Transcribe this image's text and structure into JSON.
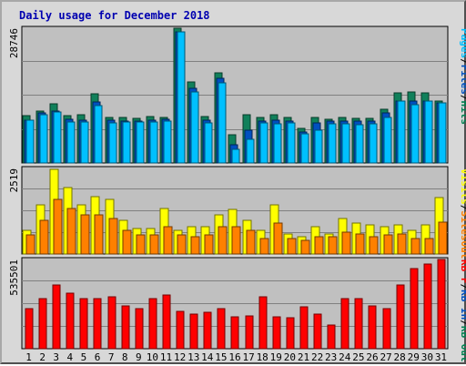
{
  "title": "Daily usage for December 2018",
  "colors": {
    "pages": "#00c0ff",
    "files": "#0050c0",
    "hits": "#008050",
    "visits": "#ffff00",
    "sites": "#ff8000",
    "kbin": "#008050",
    "kbout": "#0050c0",
    "kbf": "#ff0000",
    "weekend": "#008040",
    "weekday": "#0000b0",
    "panel": "#c0c0c0"
  },
  "chart_data": {
    "type": "bar",
    "categories": [
      "1",
      "2",
      "3",
      "4",
      "5",
      "6",
      "7",
      "8",
      "9",
      "10",
      "11",
      "12",
      "13",
      "14",
      "15",
      "16",
      "17",
      "18",
      "19",
      "20",
      "21",
      "22",
      "23",
      "24",
      "25",
      "26",
      "27",
      "28",
      "29",
      "30",
      "31"
    ],
    "weekend_days": [
      "1",
      "2",
      "8",
      "9",
      "15",
      "16",
      "22",
      "23",
      "29",
      "30"
    ],
    "panels": [
      {
        "y_max_label": "28746",
        "legend": [
          {
            "text": "Pages",
            "color": "#00c0ff"
          },
          {
            "text": "/",
            "color": "#000000"
          },
          {
            "text": "Files",
            "color": "#0050c0"
          },
          {
            "text": "/",
            "color": "#000000"
          },
          {
            "text": "Hits",
            "color": "#008050"
          }
        ],
        "ylim": [
          0,
          28746
        ],
        "series": [
          {
            "name": "Hits",
            "color": "#10805a",
            "values": [
              10100,
              11100,
              12600,
              10100,
              10300,
              14700,
              9700,
              9700,
              9500,
              9900,
              9800,
              28746,
              17200,
              10000,
              19300,
              6000,
              10200,
              9800,
              10300,
              9700,
              7300,
              9700,
              9400,
              9700,
              9500,
              9500,
              11500,
              14900,
              15100,
              15000,
              13300
            ]
          },
          {
            "name": "Files",
            "color": "#0050c0",
            "values": [
              9200,
              10600,
              11000,
              9300,
              9200,
              13000,
              9100,
              8900,
              8900,
              9100,
              9300,
              28000,
              16000,
              9200,
              18000,
              3800,
              7000,
              9000,
              9100,
              9000,
              6600,
              8600,
              9000,
              9000,
              9000,
              8900,
              10600,
              13200,
              13200,
              13300,
              12800
            ]
          },
          {
            "name": "Pages",
            "color": "#00c0ff",
            "values": [
              9100,
              10300,
              10900,
              8800,
              8800,
              12300,
              8600,
              8700,
              8700,
              8700,
              8900,
              28000,
              15100,
              8500,
              17000,
              3000,
              5100,
              8600,
              8400,
              8500,
              6300,
              6900,
              8300,
              8300,
              8200,
              8300,
              9800,
              13200,
              12500,
              13300,
              12800
            ]
          }
        ]
      },
      {
        "y_max_label": "2519",
        "legend": [
          {
            "text": "Visits",
            "color": "#ffff00"
          },
          {
            "text": "/",
            "color": "#000000"
          },
          {
            "text": "Sites",
            "color": "#ff8000"
          },
          {
            "text": "Out",
            "color": "#ff8000"
          }
        ],
        "ylim": [
          0,
          2519
        ],
        "series": [
          {
            "name": "Visits",
            "color": "#ffff00",
            "values": [
              700,
              1450,
              2500,
              1950,
              1450,
              1700,
              1600,
              1000,
              750,
              750,
              1350,
              700,
              800,
              800,
              1150,
              1300,
              1000,
              700,
              1450,
              600,
              500,
              800,
              600,
              1050,
              900,
              850,
              800,
              850,
              700,
              850,
              1650
            ]
          },
          {
            "name": "Sites",
            "color": "#ff8000",
            "values": [
              550,
              1000,
              1600,
              1350,
              1150,
              1150,
              1050,
              700,
              550,
              550,
              800,
              550,
              500,
              550,
              800,
              800,
              700,
              450,
              900,
              450,
              400,
              500,
              500,
              650,
              600,
              500,
              550,
              600,
              450,
              450,
              950
            ]
          }
        ]
      },
      {
        "y_max_label": "535501",
        "legend": [
          {
            "text": "KB F",
            "color": "#ff0000"
          },
          {
            "text": "/",
            "color": "#000000"
          },
          {
            "text": "KB In",
            "color": "#0050c0"
          },
          {
            "text": "/",
            "color": "#000000"
          },
          {
            "text": "KB Out",
            "color": "#008050"
          }
        ],
        "ylim": [
          0,
          535501
        ],
        "series": [
          {
            "name": "KB F",
            "color": "#ff0000",
            "values": [
              240000,
              300000,
              385000,
              335000,
              300000,
              300000,
              310000,
              255000,
              240000,
              300000,
              325000,
              225000,
              210000,
              220000,
              240000,
              190000,
              195000,
              310000,
              190000,
              185000,
              250000,
              210000,
              140000,
              300000,
              300000,
              255000,
              240000,
              380000,
              480000,
              510000,
              535501
            ]
          }
        ]
      }
    ]
  }
}
